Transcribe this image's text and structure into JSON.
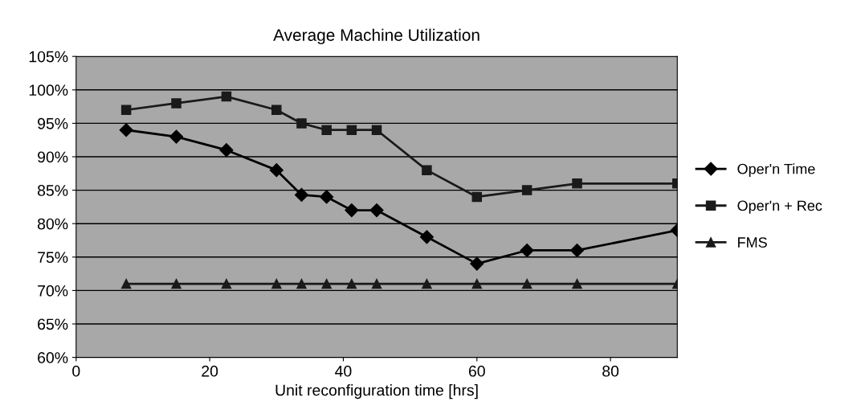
{
  "chart_data": {
    "type": "line",
    "title": "Average Machine Utilization",
    "xlabel": "Unit reconfiguration time [hrs]",
    "x": [
      7.5,
      15,
      22.5,
      30,
      33.75,
      37.5,
      41.25,
      45,
      52.5,
      60,
      67.5,
      75,
      90
    ],
    "series": [
      {
        "name": "Oper'n Time",
        "color": "#000000",
        "marker": "diamond",
        "values": [
          94,
          93,
          91,
          88,
          84.3,
          84,
          82,
          82,
          78,
          74,
          76,
          76,
          79
        ]
      },
      {
        "name": "Oper'n + Rec",
        "color": "#1a1a1a",
        "marker": "square",
        "values": [
          97,
          98,
          99,
          97,
          95,
          94,
          94,
          94,
          88,
          84,
          85,
          86,
          86
        ]
      },
      {
        "name": "FMS",
        "color": "#1a1a1a",
        "marker": "triangle",
        "values": [
          71,
          71,
          71,
          71,
          71,
          71,
          71,
          71,
          71,
          71,
          71,
          71,
          71
        ]
      }
    ],
    "xlim": [
      0,
      90
    ],
    "xticks": [
      0,
      20,
      40,
      60,
      80
    ],
    "ylim": [
      60,
      105
    ],
    "yticks": [
      {
        "value": 60,
        "label": "60%"
      },
      {
        "value": 65,
        "label": "65%"
      },
      {
        "value": 70,
        "label": "70%"
      },
      {
        "value": 75,
        "label": "75%"
      },
      {
        "value": 80,
        "label": "80%"
      },
      {
        "value": 85,
        "label": "85%"
      },
      {
        "value": 90,
        "label": "90%"
      },
      {
        "value": 95,
        "label": "95%"
      },
      {
        "value": 100,
        "label": "100%"
      },
      {
        "value": 105,
        "label": "105%"
      }
    ],
    "grid": "y",
    "legend": "right",
    "line_style": "solid"
  }
}
